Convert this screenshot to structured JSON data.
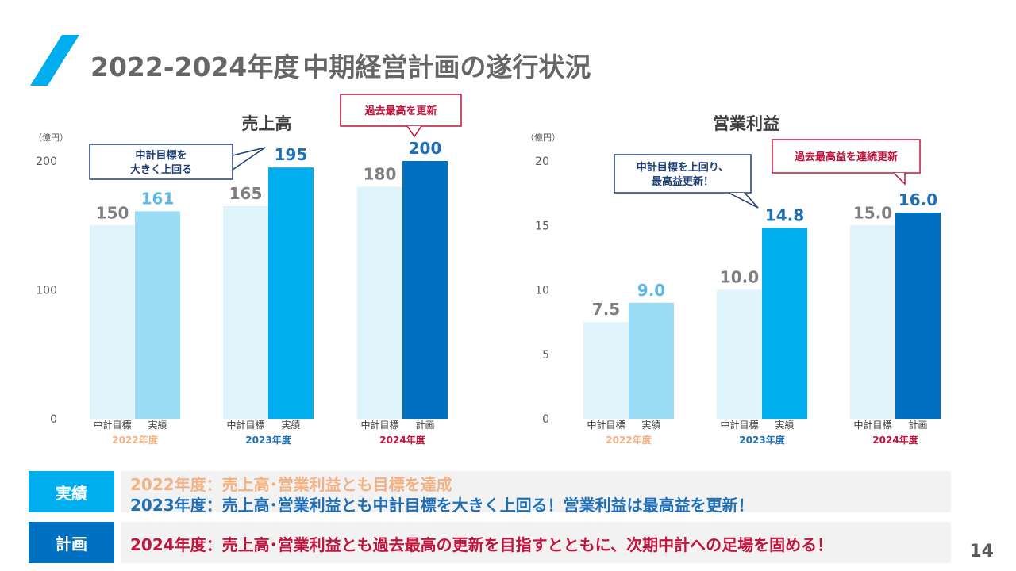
{
  "header": {
    "title_year": "2022-2024年度",
    "title_text": "中期経営計画の遂行状況"
  },
  "colors": {
    "target_bar": "#dff3fb",
    "actual_2022": "#9bdcf5",
    "actual_2023": "#00aeef",
    "plan_2024": "#0070c0",
    "label_target": "#7f7f7f",
    "label_2022": "#5bb8e8",
    "label_2023": "#1f6fb7",
    "year_2022": "#f4b183",
    "year_2023": "#1f6fb7",
    "year_2024": "#c0143c",
    "callout_blue": "#1f3f73",
    "callout_red": "#c0143c"
  },
  "chart_data": [
    {
      "type": "bar",
      "title": "売上高",
      "unit": "（億円）",
      "ylim": [
        0,
        200
      ],
      "yticks": [
        "0",
        "100",
        "200"
      ],
      "groups": [
        {
          "year": "2022年度",
          "bars": [
            {
              "label": "中計目標",
              "value": 150,
              "text": "150"
            },
            {
              "label": "実績",
              "value": 161,
              "text": "161"
            }
          ]
        },
        {
          "year": "2023年度",
          "bars": [
            {
              "label": "中計目標",
              "value": 165,
              "text": "165"
            },
            {
              "label": "実績",
              "value": 195,
              "text": "195"
            }
          ]
        },
        {
          "year": "2024年度",
          "bars": [
            {
              "label": "中計目標",
              "value": 180,
              "text": "180"
            },
            {
              "label": "計画",
              "value": 200,
              "text": "200"
            }
          ]
        }
      ],
      "callouts": [
        {
          "lines": [
            "中計目標を",
            "大きく上回る"
          ],
          "style": "blue"
        },
        {
          "lines": [
            "過去最高を更新"
          ],
          "style": "red"
        }
      ]
    },
    {
      "type": "bar",
      "title": "営業利益",
      "unit": "（億円）",
      "ylim": [
        0,
        20
      ],
      "yticks": [
        "0",
        "5",
        "10",
        "15",
        "20"
      ],
      "groups": [
        {
          "year": "2022年度",
          "bars": [
            {
              "label": "中計目標",
              "value": 7.5,
              "text": "7.5"
            },
            {
              "label": "実績",
              "value": 9.0,
              "text": "9.0"
            }
          ]
        },
        {
          "year": "2023年度",
          "bars": [
            {
              "label": "中計目標",
              "value": 10.0,
              "text": "10.0"
            },
            {
              "label": "実績",
              "value": 14.8,
              "text": "14.8"
            }
          ]
        },
        {
          "year": "2024年度",
          "bars": [
            {
              "label": "中計目標",
              "value": 15.0,
              "text": "15.0"
            },
            {
              "label": "計画",
              "value": 16.0,
              "text": "16.0"
            }
          ]
        }
      ],
      "callouts": [
        {
          "lines": [
            "中計目標を上回り、",
            "最高益更新！"
          ],
          "style": "blue"
        },
        {
          "lines": [
            "過去最高益を連続更新"
          ],
          "style": "red"
        }
      ]
    }
  ],
  "summary": {
    "actual_tag": "実績",
    "actual_line1": "2022年度：売上高･営業利益とも目標を達成",
    "actual_line2": "2023年度：売上高･営業利益とも中計目標を大きく上回る！営業利益は最高益を更新！",
    "plan_tag": "計画",
    "plan_line": "2024年度：売上高･営業利益とも過去最高の更新を目指すとともに、次期中計への足場を固める！"
  },
  "page_number": "14"
}
